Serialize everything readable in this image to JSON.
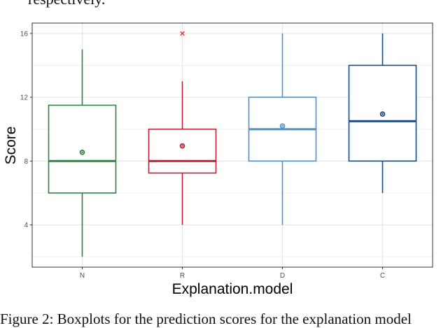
{
  "context": {
    "top_text": "respectively.",
    "caption": "Figure 2: Boxplots for the prediction scores for the explanation model"
  },
  "chart_data": {
    "type": "box",
    "title": "",
    "xlabel": "Explanation.model",
    "ylabel": "Score",
    "ylim": [
      1.35,
      16.65
    ],
    "yticks": [
      4,
      8,
      12,
      16
    ],
    "grid": true,
    "categories": [
      "N",
      "R",
      "D",
      "C"
    ],
    "colors": [
      "#2e8540",
      "#b8232f",
      "#4a93cc",
      "#1d4a80"
    ],
    "outlier_color": "#ff2a2a",
    "boxes": [
      {
        "name": "N",
        "min": 2,
        "q1": 6,
        "median": 8,
        "q3": 11.5,
        "max": 15,
        "mean": 8.55,
        "outliers": []
      },
      {
        "name": "R",
        "min": 4,
        "q1": 7.25,
        "median": 8,
        "q3": 10,
        "max": 13,
        "mean": 8.95,
        "outliers": [
          16
        ]
      },
      {
        "name": "D",
        "min": 4,
        "q1": 8,
        "median": 10,
        "q3": 12,
        "max": 16,
        "mean": 10.2,
        "outliers": []
      },
      {
        "name": "C",
        "min": 6,
        "q1": 8,
        "median": 10.5,
        "q3": 14,
        "max": 16,
        "mean": 10.95,
        "outliers": []
      }
    ]
  }
}
